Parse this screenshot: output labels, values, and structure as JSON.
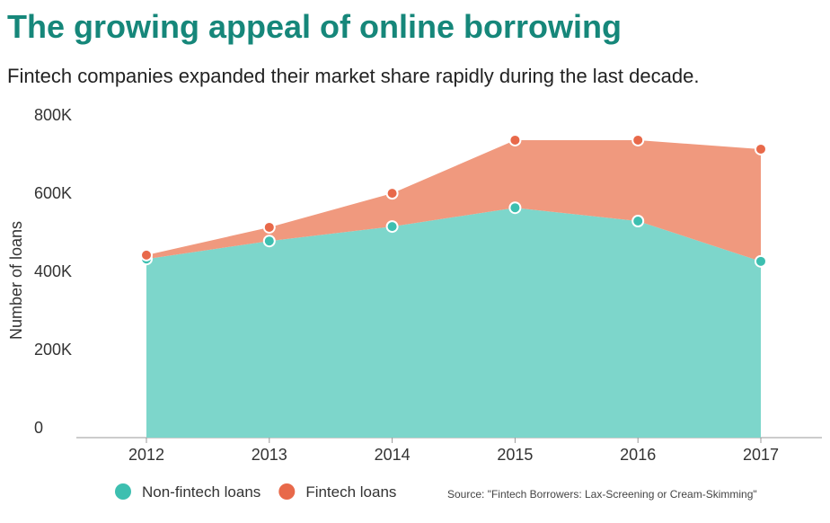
{
  "chart_data": {
    "type": "stacked-area",
    "title": "The growing appeal of online borrowing",
    "subtitle": "Fintech companies expanded their market share rapidly during the last decade.",
    "y_label": "Number of loans",
    "source": "Source: \"Fintech Borrowers: Lax-Screening or Cream-Skimming\"",
    "categories": [
      "2012",
      "2013",
      "2014",
      "2015",
      "2016",
      "2017"
    ],
    "series": [
      {
        "name": "Non-fintech loans",
        "color": "#7dd6cb",
        "marker_color": "#3dbfb0",
        "values": [
          457000,
          503000,
          540000,
          588000,
          554000,
          451000
        ]
      },
      {
        "name": "Fintech loans",
        "color": "#f0997e",
        "marker_color": "#e8694a",
        "values": [
          10000,
          35000,
          85000,
          173000,
          207000,
          287000
        ]
      }
    ],
    "ylim": [
      0,
      800000
    ],
    "yticks": [
      0,
      {
        "value": 200000,
        "label": "200K"
      },
      {
        "value": 400000,
        "label": "400K"
      },
      {
        "value": 600000,
        "label": "600K"
      },
      {
        "value": 800000,
        "label": "800K"
      }
    ],
    "grid": false,
    "legend": "bottom"
  }
}
